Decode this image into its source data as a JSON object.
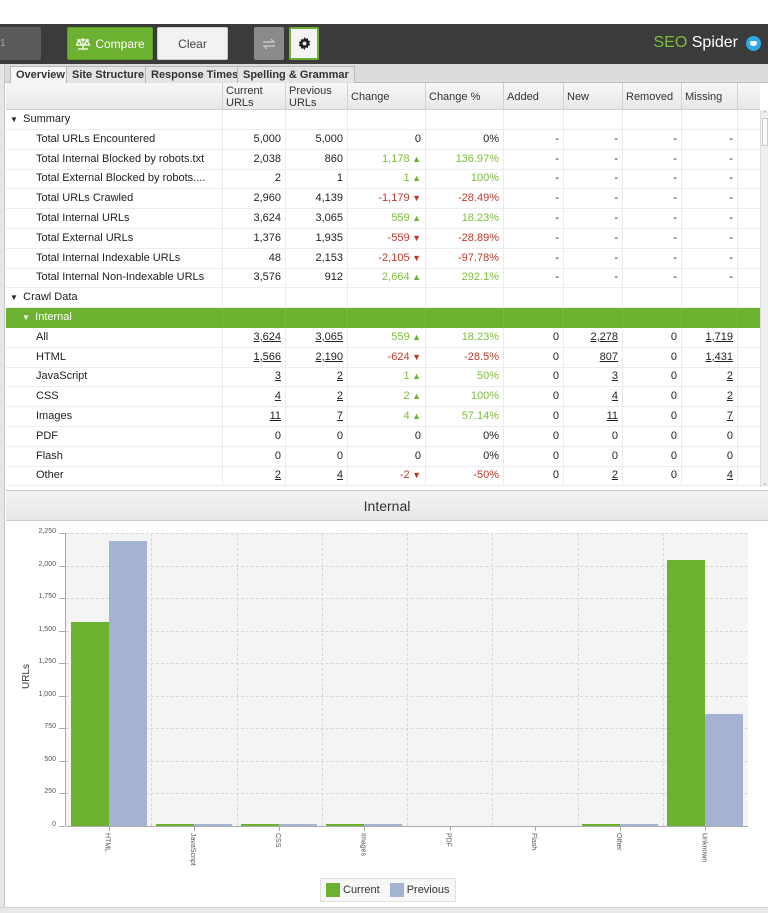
{
  "toolbar": {
    "left_label": "1",
    "compare_label": "Compare",
    "clear_label": "Clear",
    "brand_seo": "SEO",
    "brand_spider": " Spider"
  },
  "tabs": [
    {
      "label": "Overview",
      "active": true
    },
    {
      "label": "Site Structure",
      "active": false
    },
    {
      "label": "Response Times",
      "active": false
    },
    {
      "label": "Spelling & Grammar",
      "active": false
    }
  ],
  "table": {
    "headers": [
      "",
      "Current URLs",
      "Previous URLs",
      "Change",
      "Change %",
      "Added",
      "New",
      "Removed",
      "Missing"
    ],
    "rows": [
      {
        "type": "group",
        "label": "Summary"
      },
      {
        "type": "data",
        "label": "Total URLs Encountered",
        "current": "5,000",
        "previous": "5,000",
        "change": "0",
        "change_pct": "0%",
        "dir": "none",
        "added": "-",
        "new": "-",
        "removed": "-",
        "missing": "-"
      },
      {
        "type": "data",
        "label": "Total Internal Blocked by robots.txt",
        "current": "2,038",
        "previous": "860",
        "change": "1,178",
        "change_pct": "136.97%",
        "dir": "up",
        "added": "-",
        "new": "-",
        "removed": "-",
        "missing": "-"
      },
      {
        "type": "data",
        "label": "Total External Blocked by robots....",
        "current": "2",
        "previous": "1",
        "change": "1",
        "change_pct": "100%",
        "dir": "up",
        "added": "-",
        "new": "-",
        "removed": "-",
        "missing": "-"
      },
      {
        "type": "data",
        "label": "Total URLs Crawled",
        "current": "2,960",
        "previous": "4,139",
        "change": "-1,179",
        "change_pct": "-28.49%",
        "dir": "down",
        "added": "-",
        "new": "-",
        "removed": "-",
        "missing": "-"
      },
      {
        "type": "data",
        "label": "Total Internal URLs",
        "current": "3,624",
        "previous": "3,065",
        "change": "559",
        "change_pct": "18.23%",
        "dir": "up",
        "added": "-",
        "new": "-",
        "removed": "-",
        "missing": "-"
      },
      {
        "type": "data",
        "label": "Total External URLs",
        "current": "1,376",
        "previous": "1,935",
        "change": "-559",
        "change_pct": "-28.89%",
        "dir": "down",
        "added": "-",
        "new": "-",
        "removed": "-",
        "missing": "-"
      },
      {
        "type": "data",
        "label": "Total Internal Indexable URLs",
        "current": "48",
        "previous": "2,153",
        "change": "-2,105",
        "change_pct": "-97.78%",
        "dir": "down",
        "added": "-",
        "new": "-",
        "removed": "-",
        "missing": "-"
      },
      {
        "type": "data",
        "label": "Total Internal Non-Indexable URLs",
        "current": "3,576",
        "previous": "912",
        "change": "2,664",
        "change_pct": "292.1%",
        "dir": "up",
        "added": "-",
        "new": "-",
        "removed": "-",
        "missing": "-"
      },
      {
        "type": "group",
        "label": "Crawl Data"
      },
      {
        "type": "subgroup",
        "label": "Internal",
        "selected": true
      },
      {
        "type": "link",
        "label": "All",
        "current": "3,624",
        "previous": "3,065",
        "change": "559",
        "change_pct": "18.23%",
        "dir": "up",
        "added": "0",
        "new": "2,278",
        "removed": "0",
        "missing": "1,719"
      },
      {
        "type": "link",
        "label": "HTML",
        "current": "1,566",
        "previous": "2,190",
        "change": "-624",
        "change_pct": "-28.5%",
        "dir": "down",
        "added": "0",
        "new": "807",
        "removed": "0",
        "missing": "1,431"
      },
      {
        "type": "link",
        "label": "JavaScript",
        "current": "3",
        "previous": "2",
        "change": "1",
        "change_pct": "50%",
        "dir": "up",
        "added": "0",
        "new": "3",
        "removed": "0",
        "missing": "2"
      },
      {
        "type": "link",
        "label": "CSS",
        "current": "4",
        "previous": "2",
        "change": "2",
        "change_pct": "100%",
        "dir": "up",
        "added": "0",
        "new": "4",
        "removed": "0",
        "missing": "2"
      },
      {
        "type": "link",
        "label": "Images",
        "current": "11",
        "previous": "7",
        "change": "4",
        "change_pct": "57.14%",
        "dir": "up",
        "added": "0",
        "new": "11",
        "removed": "0",
        "missing": "7"
      },
      {
        "type": "link",
        "label": "PDF",
        "current": "0",
        "previous": "0",
        "change": "0",
        "change_pct": "0%",
        "dir": "none",
        "added": "0",
        "new": "0",
        "removed": "0",
        "missing": "0"
      },
      {
        "type": "link",
        "label": "Flash",
        "current": "0",
        "previous": "0",
        "change": "0",
        "change_pct": "0%",
        "dir": "none",
        "added": "0",
        "new": "0",
        "removed": "0",
        "missing": "0"
      },
      {
        "type": "link",
        "label": "Other",
        "current": "2",
        "previous": "4",
        "change": "-2",
        "change_pct": "-50%",
        "dir": "down",
        "added": "0",
        "new": "2",
        "removed": "0",
        "missing": "4"
      }
    ]
  },
  "chart_data": {
    "type": "bar",
    "title": "Internal",
    "xlabel": "",
    "ylabel": "URLs",
    "ylim": [
      0,
      2250
    ],
    "yticks": [
      "0",
      "250",
      "500",
      "750",
      "1,000",
      "1,250",
      "1,500",
      "1,750",
      "2,000",
      "2,250"
    ],
    "categories": [
      "HTML",
      "JavaScript",
      "CSS",
      "Images",
      "PDF",
      "Flash",
      "Other",
      "Unknown"
    ],
    "series": [
      {
        "name": "Current",
        "color": "#6cb130",
        "values": [
          1566,
          3,
          4,
          11,
          0,
          0,
          2,
          2040
        ]
      },
      {
        "name": "Previous",
        "color": "#a4b3d4",
        "values": [
          2190,
          2,
          2,
          7,
          0,
          0,
          4,
          863
        ]
      }
    ],
    "grid": true,
    "legend_position": "bottom"
  },
  "colors": {
    "accent": "#6cb130",
    "negative": "#c0392b",
    "positive": "#7cbf3a",
    "previous": "#a4b3d4"
  }
}
